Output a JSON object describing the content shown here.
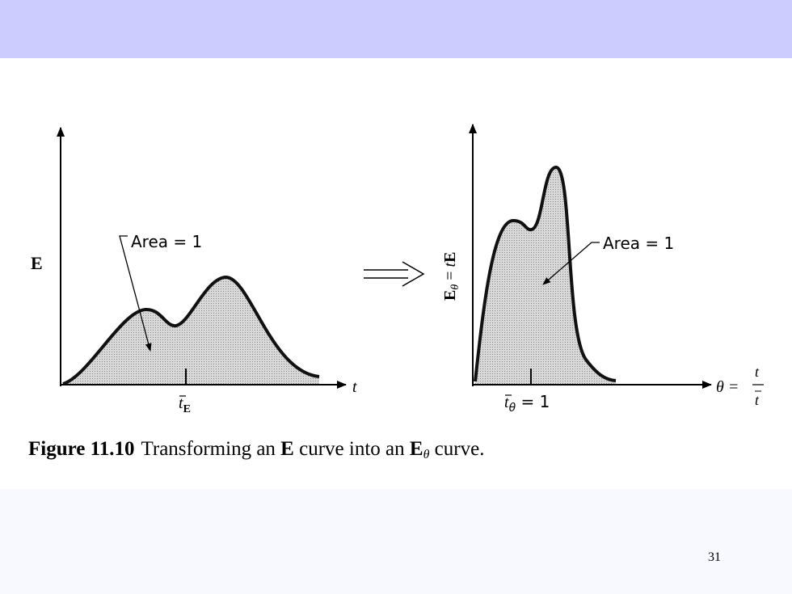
{
  "slide": {
    "page_number": "31"
  },
  "figure": {
    "caption": {
      "label": "Figure 11.10",
      "parts": [
        "Transforming an ",
        "E",
        " curve into an ",
        "E",
        "θ",
        " curve."
      ]
    },
    "left": {
      "y_label": "E",
      "x_label": "t",
      "area_label": "Area = 1",
      "mean_label": {
        "symbol": "t",
        "subscript": "E"
      }
    },
    "right": {
      "y_label": [
        "E",
        "θ",
        " = ",
        "t",
        "E"
      ],
      "area_label": "Area = 1",
      "x_label": {
        "lhs": "θ = ",
        "numerator": "t",
        "denominator": "t"
      },
      "mean_label": {
        "symbol": "t",
        "subscript": "θ",
        "rest": " = 1"
      }
    }
  }
}
